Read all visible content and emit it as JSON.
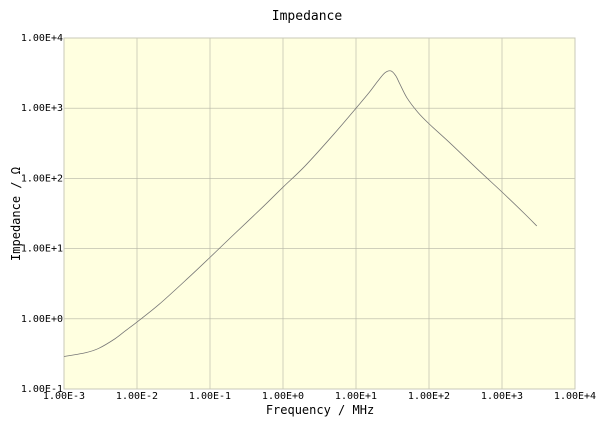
{
  "chart_data": {
    "type": "line",
    "title": "Impedance",
    "xlabel": "Frequency / MHz",
    "ylabel": "Impedance / Ω",
    "x_scale": "log",
    "y_scale": "log",
    "xlim": [
      0.001,
      10000
    ],
    "ylim": [
      0.1,
      10000
    ],
    "x_ticks": [
      0.001,
      0.01,
      0.1,
      1,
      10,
      100,
      1000,
      10000
    ],
    "x_tick_labels": [
      "1.00E-3",
      "1.00E-2",
      "1.00E-1",
      "1.00E+0",
      "1.00E+1",
      "1.00E+2",
      "1.00E+3",
      "1.00E+4"
    ],
    "y_ticks": [
      0.1,
      1,
      10,
      100,
      1000,
      10000
    ],
    "y_tick_labels": [
      "1.00E-1",
      "1.00E+0",
      "1.00E+1",
      "1.00E+2",
      "1.00E+3",
      "1.00E+4"
    ],
    "grid": true,
    "colors": {
      "plot_background": "#ffffe0",
      "grid": "#b4b4a5",
      "line": "#777777",
      "frame": "#c8c8b8"
    },
    "series": [
      {
        "x": [
          0.001,
          0.002,
          0.003,
          0.005,
          0.007,
          0.01,
          0.02,
          0.05,
          0.1,
          0.2,
          0.5,
          1,
          2,
          5,
          10,
          15,
          20,
          25,
          30,
          35,
          40,
          50,
          70,
          100,
          200,
          500,
          1000,
          2000,
          3000
        ],
        "y": [
          0.29,
          0.33,
          0.38,
          0.52,
          0.68,
          0.9,
          1.6,
          3.8,
          7.5,
          15,
          37,
          75,
          150,
          430,
          1000,
          1650,
          2450,
          3200,
          3400,
          2900,
          2200,
          1400,
          880,
          600,
          310,
          125,
          64,
          32,
          21
        ]
      }
    ]
  }
}
